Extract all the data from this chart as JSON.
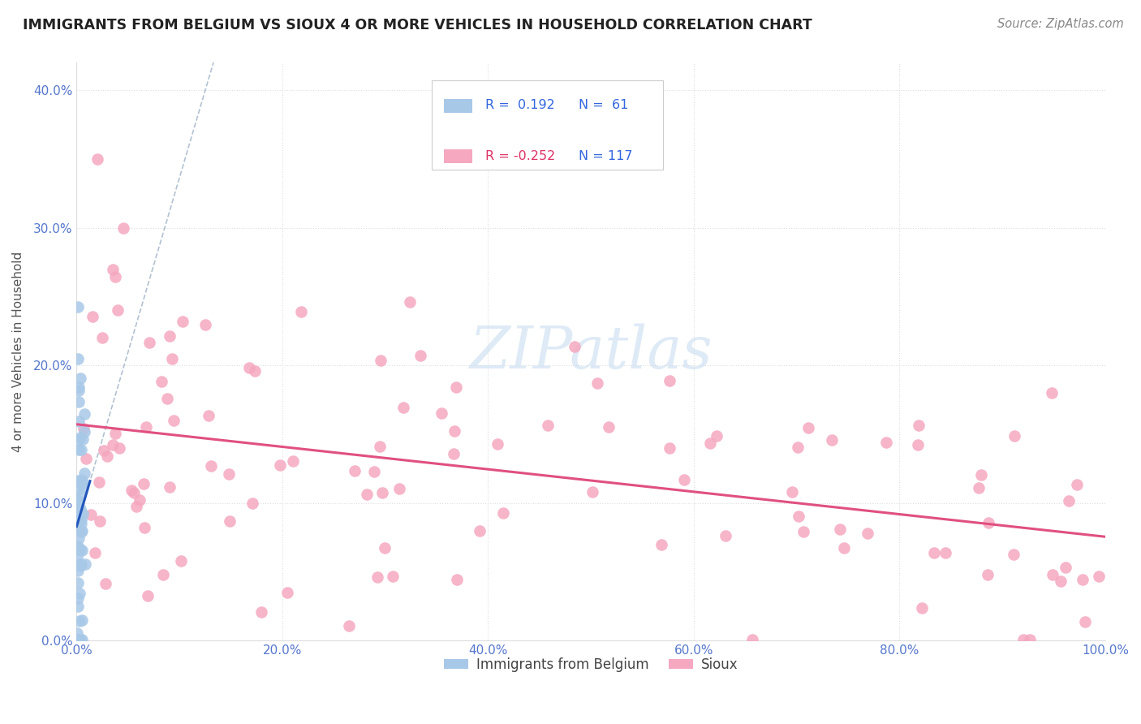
{
  "title": "IMMIGRANTS FROM BELGIUM VS SIOUX 4 OR MORE VEHICLES IN HOUSEHOLD CORRELATION CHART",
  "source": "Source: ZipAtlas.com",
  "ylabel": "4 or more Vehicles in Household",
  "legend_labels": [
    "Immigrants from Belgium",
    "Sioux"
  ],
  "r_belgium": 0.192,
  "n_belgium": 61,
  "r_sioux": -0.252,
  "n_sioux": 117,
  "blue_color": "#a8c8e8",
  "pink_color": "#f5a8c0",
  "blue_line_color": "#2255bb",
  "pink_line_color": "#e05080",
  "dashed_line_color": "#aabbcc",
  "watermark_color": "#c8ddf0",
  "title_color": "#222222",
  "source_color": "#888888",
  "tick_color": "#5577cc",
  "ylabel_color": "#555555",
  "grid_color": "#dddddd",
  "legend_border_color": "#cccccc",
  "legend_text_color_black": "#333333",
  "legend_text_color_blue": "#3366dd",
  "legend_text_color_pink": "#dd3366",
  "xlim": [
    0.0,
    1.0
  ],
  "ylim": [
    0.0,
    0.42
  ],
  "xticks": [
    0.0,
    0.2,
    0.4,
    0.6,
    0.8,
    1.0
  ],
  "yticks": [
    0.0,
    0.1,
    0.2,
    0.3,
    0.4
  ],
  "seed": 42
}
